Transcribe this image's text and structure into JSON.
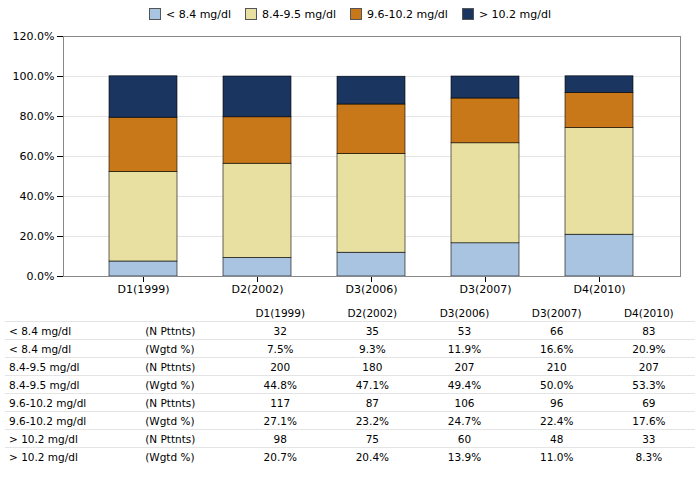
{
  "chart_data": {
    "type": "bar",
    "stacked": true,
    "categories": [
      "D1(1999)",
      "D2(2002)",
      "D3(2006)",
      "D3(2007)",
      "D4(2010)"
    ],
    "series": [
      {
        "name": "< 8.4 mg/dl",
        "color": "#a8c4e0",
        "values": [
          7.5,
          9.3,
          11.9,
          16.6,
          20.9
        ]
      },
      {
        "name": "8.4-9.5 mg/dl",
        "color": "#e8e0a0",
        "values": [
          44.8,
          47.1,
          49.4,
          50.0,
          53.3
        ]
      },
      {
        "name": "9.6-10.2 mg/dl",
        "color": "#c87818",
        "values": [
          27.1,
          23.2,
          24.7,
          22.4,
          17.6
        ]
      },
      {
        "name": "> 10.2 mg/dl",
        "color": "#1a3560",
        "values": [
          20.7,
          20.4,
          13.9,
          11.0,
          8.3
        ]
      }
    ],
    "ylim": [
      0,
      120
    ],
    "yticks": [
      {
        "value": 0,
        "label": "0.0%"
      },
      {
        "value": 20,
        "label": "20.0%"
      },
      {
        "value": 40,
        "label": "40.0%"
      },
      {
        "value": 60,
        "label": "60.0%"
      },
      {
        "value": 80,
        "label": "80.0%"
      },
      {
        "value": 100,
        "label": "100.0%"
      },
      {
        "value": 120,
        "label": "120.0%"
      }
    ],
    "grid": true,
    "legend": "top",
    "table_rows": [
      [
        "< 8.4 mg/dl",
        "(N Pttnts)",
        "32",
        "35",
        "53",
        "66",
        "83"
      ],
      [
        "< 8.4 mg/dl",
        "(Wgtd %)",
        "7.5%",
        "9.3%",
        "11.9%",
        "16.6%",
        "20.9%"
      ],
      [
        "8.4-9.5 mg/dl",
        "(N Pttnts)",
        "200",
        "180",
        "207",
        "210",
        "207"
      ],
      [
        "8.4-9.5 mg/dl",
        "(Wgtd %)",
        "44.8%",
        "47.1%",
        "49.4%",
        "50.0%",
        "53.3%"
      ],
      [
        "9.6-10.2 mg/dl",
        "(N Pttnts)",
        "117",
        "87",
        "106",
        "96",
        "69"
      ],
      [
        "9.6-10.2 mg/dl",
        "(Wgtd %)",
        "27.1%",
        "23.2%",
        "24.7%",
        "22.4%",
        "17.6%"
      ],
      [
        "> 10.2 mg/dl",
        "(N Pttnts)",
        "98",
        "75",
        "60",
        "48",
        "33"
      ],
      [
        "> 10.2 mg/dl",
        "(Wgtd %)",
        "20.7%",
        "20.4%",
        "13.9%",
        "11.0%",
        "8.3%"
      ]
    ]
  }
}
